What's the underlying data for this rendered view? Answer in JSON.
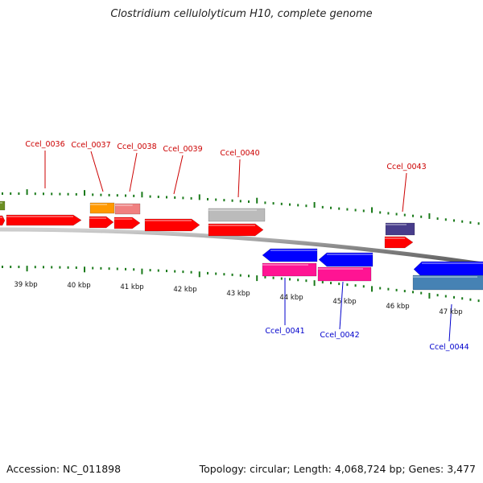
{
  "title": "Clostridium cellulolyticum H10, complete genome",
  "footer": {
    "accession": "Accession: NC_011898",
    "summary": "Topology: circular; Length: 4,068,724 bp; Genes: 3,477"
  },
  "colors": {
    "background": "#ffffff",
    "backbone": "#8a8a8a",
    "tick": "#1a7a1a",
    "forward_cds": "#ff0000",
    "reverse_cds": "#0000ff",
    "label_forward": "#cc0000",
    "label_reverse": "#0000cc"
  },
  "scale_labels": [
    {
      "text": "39 kbp"
    },
    {
      "text": "40 kbp"
    },
    {
      "text": "41 kbp"
    },
    {
      "text": "42 kbp"
    },
    {
      "text": "43 kbp"
    },
    {
      "text": "44 kbp"
    },
    {
      "text": "45 kbp"
    },
    {
      "text": "46 kbp"
    },
    {
      "text": "47 kbp"
    }
  ],
  "gene_labels": [
    {
      "text": "Ccel_0036",
      "strand": "forward"
    },
    {
      "text": "Ccel_0037",
      "strand": "forward"
    },
    {
      "text": "Ccel_0038",
      "strand": "forward"
    },
    {
      "text": "Ccel_0039",
      "strand": "forward"
    },
    {
      "text": "Ccel_0040",
      "strand": "forward"
    },
    {
      "text": "Ccel_0043",
      "strand": "forward"
    },
    {
      "text": "Ccel_0041",
      "strand": "reverse"
    },
    {
      "text": "Ccel_0042",
      "strand": "reverse"
    },
    {
      "text": "Ccel_0044",
      "strand": "reverse"
    }
  ],
  "features": [
    {
      "name": "olive-gene-feature",
      "color": "#6b8e23"
    },
    {
      "name": "orange-gene-feature",
      "color": "#ff9900"
    },
    {
      "name": "salmon-gene-feature",
      "color": "#f08080"
    },
    {
      "name": "silver-gene-feature",
      "color": "#bbbbbb"
    },
    {
      "name": "purple-gene-feature",
      "color": "#483d8b"
    },
    {
      "name": "pink-gene-feature",
      "color": "#ff1493"
    },
    {
      "name": "steelblue-gene-feature",
      "color": "#4682b4"
    }
  ]
}
